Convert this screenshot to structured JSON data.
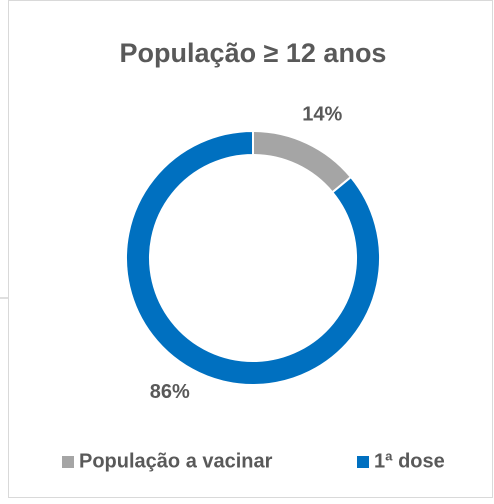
{
  "chart_data": {
    "type": "donut",
    "title": "População ≥ 12 anos",
    "categories": [
      "População a vacinar",
      "1ª dose"
    ],
    "values": [
      14,
      86
    ],
    "value_labels": [
      "14%",
      "86%"
    ],
    "colors": [
      "#a5a5a5",
      "#0070c0"
    ],
    "legend": "bottom"
  }
}
